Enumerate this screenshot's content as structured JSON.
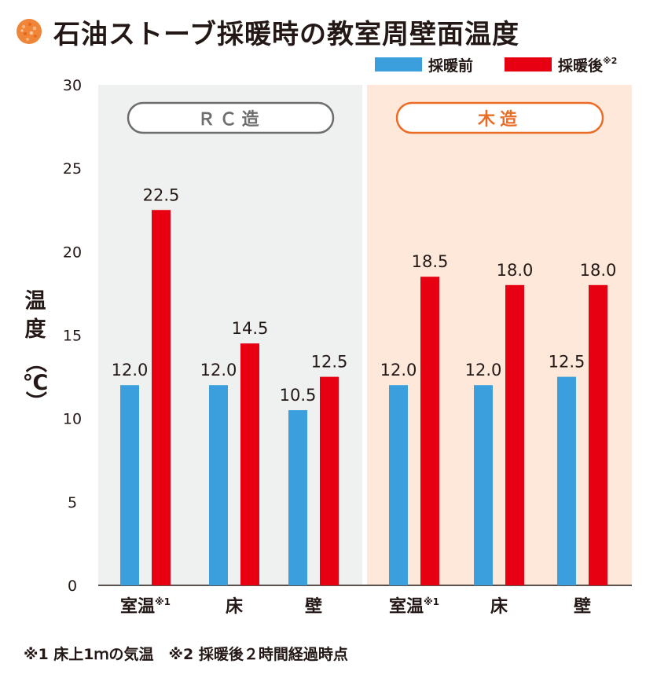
{
  "title": "石油ストーブ採暖時の教室周壁面温度",
  "footnote": "※1 床上1ｍの気温　※2 採暖後２時間経過時点",
  "colors": {
    "before": "#3a9fdc",
    "after": "#e60012",
    "rc_panel": "#eff1f0",
    "wood_panel": "#fde8da",
    "rc_pill_border": "#6d6d6d",
    "wood_pill_border": "#ea6c27",
    "icon": "#f08437"
  },
  "icon": "stove-flame-icon",
  "chart_data": {
    "type": "bar",
    "ylabel": "温度（℃）",
    "ylim": [
      0,
      30
    ],
    "yticks": [
      0,
      5,
      10,
      15,
      20,
      25,
      30
    ],
    "legend": {
      "placement": "top-right",
      "entries": [
        {
          "name": "採暖前",
          "note": ""
        },
        {
          "name": "採暖後",
          "note": "※2"
        }
      ]
    },
    "groups": [
      {
        "name": "ＲＣ造",
        "categories": [
          {
            "label": "室温",
            "note": "※1"
          },
          {
            "label": "床",
            "note": ""
          },
          {
            "label": "壁",
            "note": ""
          }
        ],
        "series": [
          {
            "name": "採暖前",
            "values": [
              12.0,
              12.0,
              10.5
            ],
            "labels": [
              "12.0",
              "12.0",
              "10.5"
            ]
          },
          {
            "name": "採暖後",
            "values": [
              22.5,
              14.5,
              12.5
            ],
            "labels": [
              "22.5",
              "14.5",
              "12.5"
            ]
          }
        ]
      },
      {
        "name": "木造",
        "categories": [
          {
            "label": "室温",
            "note": "※1"
          },
          {
            "label": "床",
            "note": ""
          },
          {
            "label": "壁",
            "note": ""
          }
        ],
        "series": [
          {
            "name": "採暖前",
            "values": [
              12.0,
              12.0,
              12.5
            ],
            "labels": [
              "12.0",
              "12.0",
              "12.5"
            ]
          },
          {
            "name": "採暖後",
            "values": [
              18.5,
              18.0,
              18.0
            ],
            "labels": [
              "18.5",
              "18.0",
              "18.0"
            ]
          }
        ]
      }
    ]
  }
}
